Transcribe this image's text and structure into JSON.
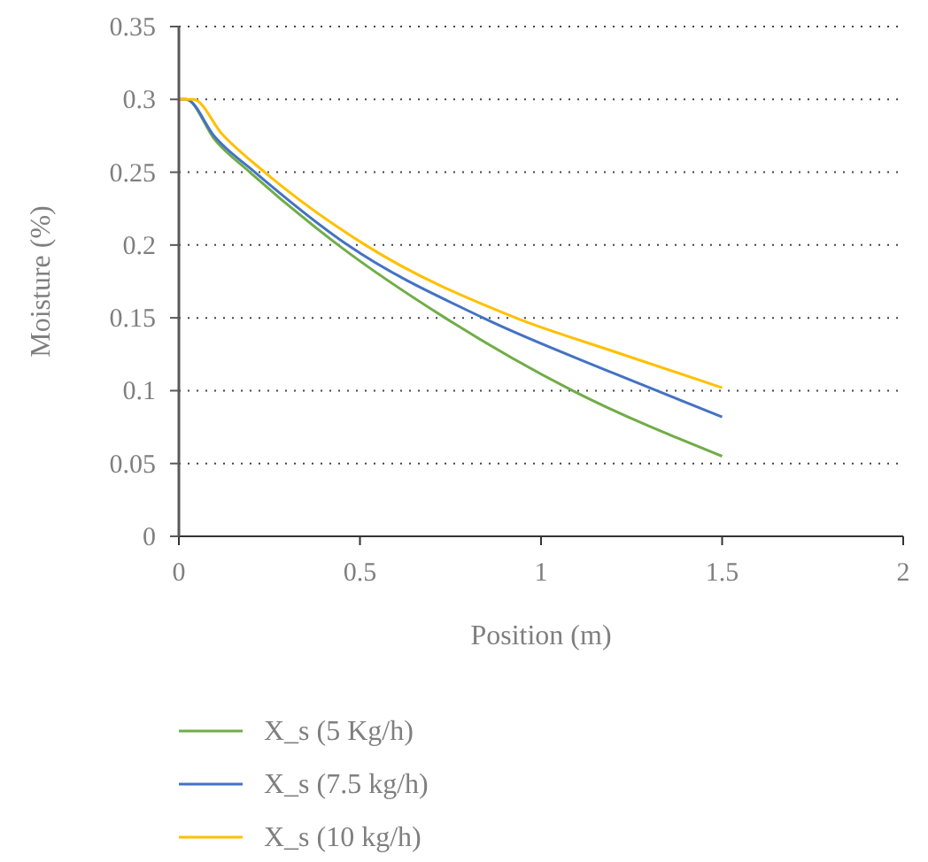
{
  "chart_data": {
    "type": "line",
    "xlabel": "Position (m)",
    "ylabel": "Moisture (%)",
    "xlim": [
      0,
      2
    ],
    "xticks": [
      0,
      0.5,
      1,
      1.5,
      2
    ],
    "ylim": [
      0,
      0.35
    ],
    "yticks": [
      0,
      0.05,
      0.1,
      0.15,
      0.2,
      0.25,
      0.3,
      0.35
    ],
    "grid": "y",
    "legend": "bottom",
    "marker": "none",
    "line_style": "solid",
    "series": [
      {
        "name": "X_s (5 Kg/h)",
        "color": "#70ad47",
        "x": [
          0,
          0.02,
          0.1,
          0.196,
          0.44,
          0.735,
          1.087,
          1.5
        ],
        "values": [
          0.3,
          0.3,
          0.272,
          0.25,
          0.2,
          0.15,
          0.1,
          0.055
        ]
      },
      {
        "name": "X_s (7.5 kg/h)",
        "color": "#4472c4",
        "x": [
          0,
          0.02,
          0.1,
          0.21,
          0.466,
          0.84,
          1.2,
          1.5
        ],
        "values": [
          0.3,
          0.3,
          0.274,
          0.25,
          0.2,
          0.15,
          0.112,
          0.082
        ]
      },
      {
        "name": "X_s (10 kg/h)",
        "color": "#ffc000",
        "x": [
          0,
          0.04,
          0.12,
          0.237,
          0.515,
          0.93,
          1.2,
          1.5
        ],
        "values": [
          0.3,
          0.3,
          0.276,
          0.25,
          0.2,
          0.15,
          0.127,
          0.102
        ]
      }
    ]
  }
}
